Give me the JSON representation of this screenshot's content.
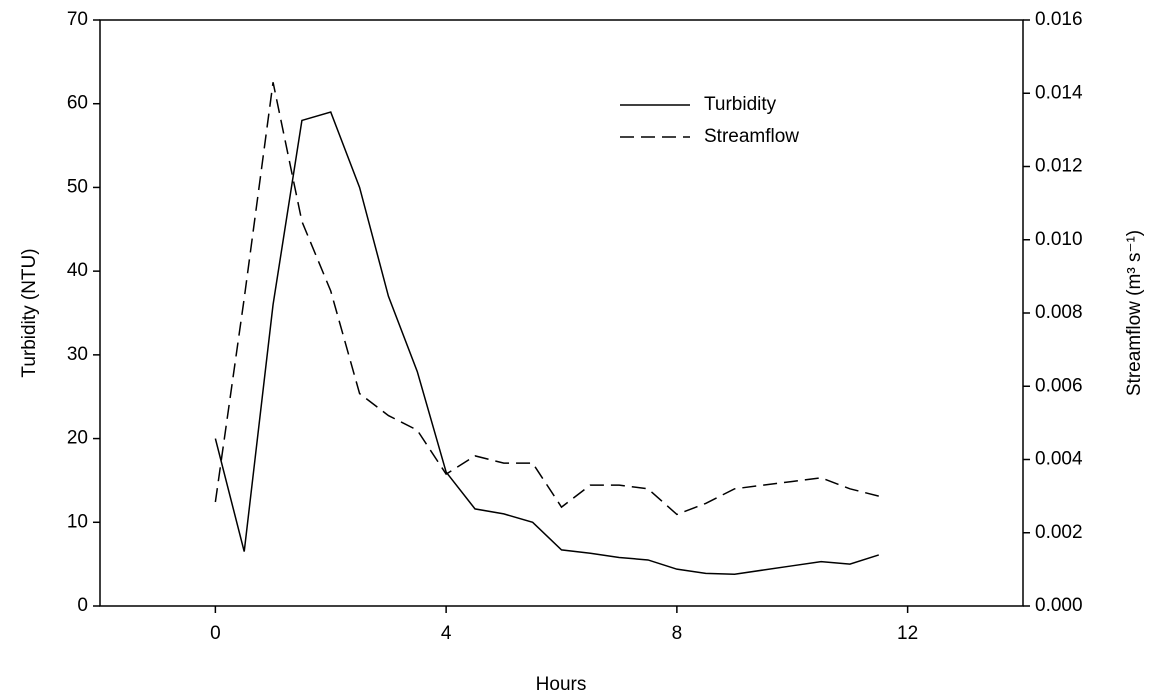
{
  "chart_data": {
    "type": "line",
    "x_label": "Hours",
    "y_label": "Turbidity (NTU)",
    "y2_label": "Streamflow (m³ s⁻¹)",
    "x": [
      0,
      0.5,
      1,
      1.5,
      2,
      2.5,
      3,
      3.5,
      4,
      4.5,
      5,
      5.5,
      6,
      6.5,
      7,
      7.5,
      8,
      8.5,
      9,
      9.5,
      10,
      10.5,
      11,
      11.5
    ],
    "series": [
      {
        "name": "Turbidity",
        "color": "#000000",
        "linestyle": "solid",
        "values": [
          20,
          6.5,
          36,
          58,
          59,
          50,
          37,
          28,
          16,
          11.6,
          11,
          10,
          6.7,
          6.3,
          5.8,
          5.5,
          4.4,
          3.9,
          3.8,
          4.3,
          4.8,
          5.3,
          5,
          6.1
        ]
      },
      {
        "name": "Streamflow",
        "color": "#000000",
        "linestyle": "dashed",
        "axis": "y2",
        "values": [
          0.00284,
          0.0084,
          0.0143,
          0.0105,
          0.0086,
          0.0058,
          0.0052,
          0.0048,
          0.0036,
          0.0041,
          0.0039,
          0.0039,
          0.0027,
          0.0033,
          0.0033,
          0.0032,
          0.0025,
          0.0028,
          0.0032,
          0.0033,
          0.0034,
          0.0035,
          0.0032,
          0.003
        ]
      }
    ],
    "xlim": [
      -2,
      14
    ],
    "xticks": [
      0,
      4,
      8,
      12
    ],
    "ylim": [
      0,
      70
    ],
    "yticks": [
      0,
      10,
      20,
      30,
      40,
      50,
      60,
      70
    ],
    "y2lim": [
      0,
      0.016
    ],
    "y2ticks": [
      {
        "value": 0,
        "label": "0.000"
      },
      {
        "value": 0.002,
        "label": "0.002"
      },
      {
        "value": 0.004,
        "label": "0.004"
      },
      {
        "value": 0.006,
        "label": "0.006"
      },
      {
        "value": 0.008,
        "label": "0.008"
      },
      {
        "value": 0.01,
        "label": "0.010"
      },
      {
        "value": 0.012,
        "label": "0.012"
      },
      {
        "value": 0.014,
        "label": "0.014"
      },
      {
        "value": 0.016,
        "label": "0.016"
      }
    ],
    "grid": false
  }
}
